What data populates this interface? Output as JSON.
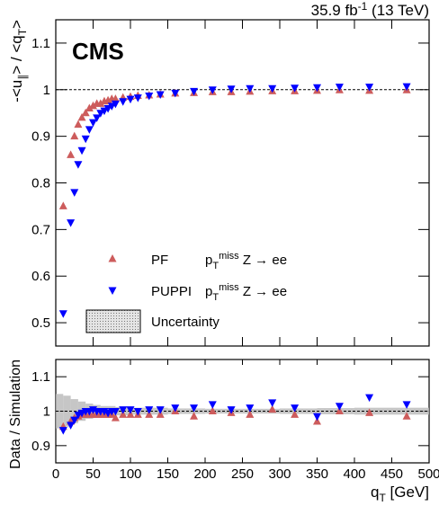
{
  "chart_data": [
    {
      "type": "scatter",
      "experiment": "CMS",
      "lumi": [
        {
          "text": "35.9 fb"
        },
        {
          "text": "-1",
          "shift": "sup"
        },
        {
          "text": " (13 TeV)"
        }
      ],
      "ylabel": [
        {
          "text": "-<u"
        },
        {
          "text": "∥",
          "shift": "sub"
        },
        {
          "text": "> / <q"
        },
        {
          "text": "T",
          "shift": "sub"
        },
        {
          "text": ">"
        }
      ],
      "process": [
        {
          "text": "p"
        },
        {
          "text": "T",
          "shift": "sub"
        },
        {
          "text": "miss",
          "shift": "sup"
        },
        {
          "text": " Z → ee"
        }
      ],
      "xlim": [
        0,
        500
      ],
      "ylim": [
        0.45,
        1.15
      ],
      "yticks": [
        0.5,
        0.6,
        0.7,
        0.8,
        0.9,
        1,
        1.1
      ],
      "reference_line": 1,
      "x": [
        10,
        20,
        25,
        30,
        35,
        40,
        45,
        50,
        55,
        60,
        65,
        70,
        75,
        80,
        90,
        100,
        110,
        125,
        140,
        160,
        185,
        210,
        235,
        260,
        290,
        320,
        350,
        380,
        420,
        470
      ],
      "series": [
        {
          "name": "PF",
          "color": "#cd5c5c",
          "marker": "up",
          "values": [
            0.75,
            0.86,
            0.9,
            0.925,
            0.94,
            0.95,
            0.96,
            0.965,
            0.97,
            0.97,
            0.975,
            0.977,
            0.98,
            0.98,
            0.983,
            0.985,
            0.987,
            0.988,
            0.99,
            0.992,
            0.993,
            0.995,
            0.995,
            0.996,
            0.997,
            0.997,
            0.998,
            0.999,
            0.998,
            0.999
          ]
        },
        {
          "name": "PUPPI",
          "color": "#0000ff",
          "marker": "down",
          "values": [
            0.52,
            0.715,
            0.78,
            0.84,
            0.87,
            0.895,
            0.915,
            0.93,
            0.94,
            0.95,
            0.955,
            0.96,
            0.965,
            0.97,
            0.975,
            0.98,
            0.983,
            0.987,
            0.99,
            0.993,
            0.997,
            1.0,
            1.002,
            1.003,
            1.003,
            1.004,
            1.005,
            1.006,
            1.006,
            1.007
          ]
        }
      ]
    },
    {
      "type": "scatter",
      "ylabel": "Data / Simulation",
      "xlabel": [
        {
          "text": "q"
        },
        {
          "text": "T",
          "shift": "sub"
        },
        {
          "text": " [GeV]"
        }
      ],
      "xlim": [
        0,
        500
      ],
      "xticks": [
        0,
        50,
        100,
        150,
        200,
        250,
        300,
        350,
        400,
        450,
        500
      ],
      "ylim": [
        0.85,
        1.15
      ],
      "yticks": [
        0.9,
        1,
        1.1
      ],
      "reference_line": 1,
      "x": [
        10,
        20,
        25,
        30,
        35,
        40,
        45,
        50,
        55,
        60,
        65,
        70,
        75,
        80,
        90,
        100,
        110,
        125,
        140,
        160,
        185,
        210,
        235,
        260,
        290,
        320,
        350,
        380,
        420,
        470
      ],
      "series": [
        {
          "name": "PF",
          "color": "#cd5c5c",
          "marker": "up",
          "values": [
            0.955,
            0.97,
            0.98,
            0.985,
            0.99,
            0.99,
            0.99,
            0.99,
            0.99,
            0.99,
            0.99,
            0.99,
            0.99,
            0.98,
            0.99,
            0.99,
            0.99,
            0.99,
            0.99,
            1.0,
            0.985,
            1.0,
            0.995,
            0.99,
            1.005,
            0.99,
            0.97,
            1.0,
            0.995,
            0.985
          ]
        },
        {
          "name": "PUPPI",
          "color": "#0000ff",
          "marker": "down",
          "values": [
            0.945,
            0.96,
            0.975,
            0.99,
            0.995,
            1.0,
            1.0,
            1.005,
            1.0,
            1.0,
            1.0,
            0.995,
            1.0,
            1.0,
            1.005,
            1.005,
            1.0,
            1.005,
            1.005,
            1.01,
            1.01,
            1.02,
            1.005,
            1.01,
            1.025,
            1.01,
            0.985,
            1.015,
            1.04,
            1.02
          ]
        }
      ],
      "band": {
        "name": "Uncertainty",
        "color": "#b8b8b8",
        "edges": [
          0,
          10,
          20,
          30,
          40,
          50,
          60,
          80,
          100,
          150,
          200,
          250,
          300,
          350,
          400,
          450,
          500
        ],
        "lower": [
          0.95,
          0.955,
          0.965,
          0.972,
          0.978,
          0.982,
          0.985,
          0.988,
          0.99,
          0.992,
          0.993,
          0.993,
          0.992,
          0.991,
          0.99,
          0.99
        ],
        "upper": [
          1.05,
          1.045,
          1.035,
          1.028,
          1.022,
          1.018,
          1.015,
          1.012,
          1.01,
          1.008,
          1.007,
          1.007,
          1.008,
          1.009,
          1.01,
          1.01
        ]
      }
    }
  ]
}
